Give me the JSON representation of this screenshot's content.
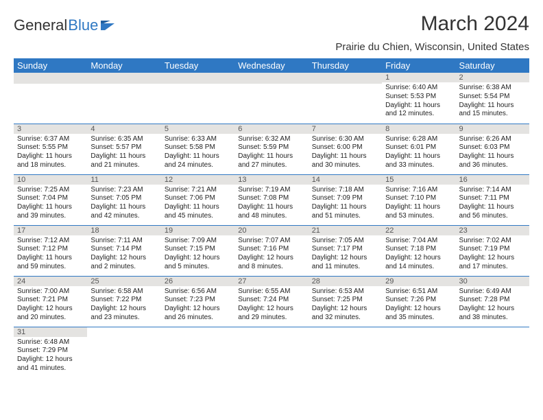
{
  "logo": {
    "textA": "General",
    "textB": "Blue"
  },
  "title": "March 2024",
  "location": "Prairie du Chien, Wisconsin, United States",
  "headerColor": "#2f78c3",
  "days": [
    "Sunday",
    "Monday",
    "Tuesday",
    "Wednesday",
    "Thursday",
    "Friday",
    "Saturday"
  ],
  "weeks": [
    [
      {
        "n": "",
        "sr": "",
        "ss": "",
        "dl": ""
      },
      {
        "n": "",
        "sr": "",
        "ss": "",
        "dl": ""
      },
      {
        "n": "",
        "sr": "",
        "ss": "",
        "dl": ""
      },
      {
        "n": "",
        "sr": "",
        "ss": "",
        "dl": ""
      },
      {
        "n": "",
        "sr": "",
        "ss": "",
        "dl": ""
      },
      {
        "n": "1",
        "sr": "Sunrise: 6:40 AM",
        "ss": "Sunset: 5:53 PM",
        "dl": "Daylight: 11 hours and 12 minutes."
      },
      {
        "n": "2",
        "sr": "Sunrise: 6:38 AM",
        "ss": "Sunset: 5:54 PM",
        "dl": "Daylight: 11 hours and 15 minutes."
      }
    ],
    [
      {
        "n": "3",
        "sr": "Sunrise: 6:37 AM",
        "ss": "Sunset: 5:55 PM",
        "dl": "Daylight: 11 hours and 18 minutes."
      },
      {
        "n": "4",
        "sr": "Sunrise: 6:35 AM",
        "ss": "Sunset: 5:57 PM",
        "dl": "Daylight: 11 hours and 21 minutes."
      },
      {
        "n": "5",
        "sr": "Sunrise: 6:33 AM",
        "ss": "Sunset: 5:58 PM",
        "dl": "Daylight: 11 hours and 24 minutes."
      },
      {
        "n": "6",
        "sr": "Sunrise: 6:32 AM",
        "ss": "Sunset: 5:59 PM",
        "dl": "Daylight: 11 hours and 27 minutes."
      },
      {
        "n": "7",
        "sr": "Sunrise: 6:30 AM",
        "ss": "Sunset: 6:00 PM",
        "dl": "Daylight: 11 hours and 30 minutes."
      },
      {
        "n": "8",
        "sr": "Sunrise: 6:28 AM",
        "ss": "Sunset: 6:01 PM",
        "dl": "Daylight: 11 hours and 33 minutes."
      },
      {
        "n": "9",
        "sr": "Sunrise: 6:26 AM",
        "ss": "Sunset: 6:03 PM",
        "dl": "Daylight: 11 hours and 36 minutes."
      }
    ],
    [
      {
        "n": "10",
        "sr": "Sunrise: 7:25 AM",
        "ss": "Sunset: 7:04 PM",
        "dl": "Daylight: 11 hours and 39 minutes."
      },
      {
        "n": "11",
        "sr": "Sunrise: 7:23 AM",
        "ss": "Sunset: 7:05 PM",
        "dl": "Daylight: 11 hours and 42 minutes."
      },
      {
        "n": "12",
        "sr": "Sunrise: 7:21 AM",
        "ss": "Sunset: 7:06 PM",
        "dl": "Daylight: 11 hours and 45 minutes."
      },
      {
        "n": "13",
        "sr": "Sunrise: 7:19 AM",
        "ss": "Sunset: 7:08 PM",
        "dl": "Daylight: 11 hours and 48 minutes."
      },
      {
        "n": "14",
        "sr": "Sunrise: 7:18 AM",
        "ss": "Sunset: 7:09 PM",
        "dl": "Daylight: 11 hours and 51 minutes."
      },
      {
        "n": "15",
        "sr": "Sunrise: 7:16 AM",
        "ss": "Sunset: 7:10 PM",
        "dl": "Daylight: 11 hours and 53 minutes."
      },
      {
        "n": "16",
        "sr": "Sunrise: 7:14 AM",
        "ss": "Sunset: 7:11 PM",
        "dl": "Daylight: 11 hours and 56 minutes."
      }
    ],
    [
      {
        "n": "17",
        "sr": "Sunrise: 7:12 AM",
        "ss": "Sunset: 7:12 PM",
        "dl": "Daylight: 11 hours and 59 minutes."
      },
      {
        "n": "18",
        "sr": "Sunrise: 7:11 AM",
        "ss": "Sunset: 7:14 PM",
        "dl": "Daylight: 12 hours and 2 minutes."
      },
      {
        "n": "19",
        "sr": "Sunrise: 7:09 AM",
        "ss": "Sunset: 7:15 PM",
        "dl": "Daylight: 12 hours and 5 minutes."
      },
      {
        "n": "20",
        "sr": "Sunrise: 7:07 AM",
        "ss": "Sunset: 7:16 PM",
        "dl": "Daylight: 12 hours and 8 minutes."
      },
      {
        "n": "21",
        "sr": "Sunrise: 7:05 AM",
        "ss": "Sunset: 7:17 PM",
        "dl": "Daylight: 12 hours and 11 minutes."
      },
      {
        "n": "22",
        "sr": "Sunrise: 7:04 AM",
        "ss": "Sunset: 7:18 PM",
        "dl": "Daylight: 12 hours and 14 minutes."
      },
      {
        "n": "23",
        "sr": "Sunrise: 7:02 AM",
        "ss": "Sunset: 7:19 PM",
        "dl": "Daylight: 12 hours and 17 minutes."
      }
    ],
    [
      {
        "n": "24",
        "sr": "Sunrise: 7:00 AM",
        "ss": "Sunset: 7:21 PM",
        "dl": "Daylight: 12 hours and 20 minutes."
      },
      {
        "n": "25",
        "sr": "Sunrise: 6:58 AM",
        "ss": "Sunset: 7:22 PM",
        "dl": "Daylight: 12 hours and 23 minutes."
      },
      {
        "n": "26",
        "sr": "Sunrise: 6:56 AM",
        "ss": "Sunset: 7:23 PM",
        "dl": "Daylight: 12 hours and 26 minutes."
      },
      {
        "n": "27",
        "sr": "Sunrise: 6:55 AM",
        "ss": "Sunset: 7:24 PM",
        "dl": "Daylight: 12 hours and 29 minutes."
      },
      {
        "n": "28",
        "sr": "Sunrise: 6:53 AM",
        "ss": "Sunset: 7:25 PM",
        "dl": "Daylight: 12 hours and 32 minutes."
      },
      {
        "n": "29",
        "sr": "Sunrise: 6:51 AM",
        "ss": "Sunset: 7:26 PM",
        "dl": "Daylight: 12 hours and 35 minutes."
      },
      {
        "n": "30",
        "sr": "Sunrise: 6:49 AM",
        "ss": "Sunset: 7:28 PM",
        "dl": "Daylight: 12 hours and 38 minutes."
      }
    ],
    [
      {
        "n": "31",
        "sr": "Sunrise: 6:48 AM",
        "ss": "Sunset: 7:29 PM",
        "dl": "Daylight: 12 hours and 41 minutes."
      },
      {
        "n": "",
        "sr": "",
        "ss": "",
        "dl": ""
      },
      {
        "n": "",
        "sr": "",
        "ss": "",
        "dl": ""
      },
      {
        "n": "",
        "sr": "",
        "ss": "",
        "dl": ""
      },
      {
        "n": "",
        "sr": "",
        "ss": "",
        "dl": ""
      },
      {
        "n": "",
        "sr": "",
        "ss": "",
        "dl": ""
      },
      {
        "n": "",
        "sr": "",
        "ss": "",
        "dl": ""
      }
    ]
  ]
}
